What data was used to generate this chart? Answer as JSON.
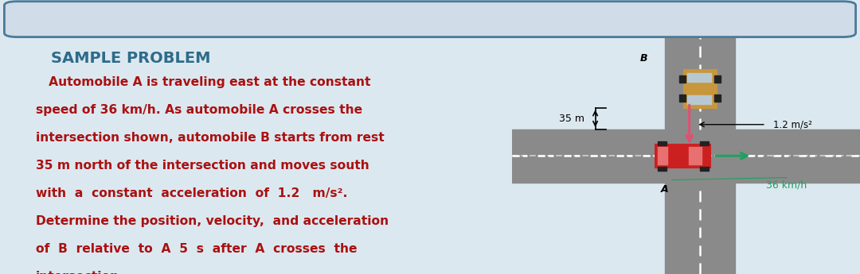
{
  "bg_color": "#dce8f0",
  "left_panel_bg": "#dce8f0",
  "right_panel_bg": "#e8e2cc",
  "title": "SAMPLE PROBLEM",
  "title_color": "#2e6b8a",
  "title_fontsize": 14,
  "body_text_color": "#aa1111",
  "body_fontsize": 11.2,
  "body_lines": [
    "   Automobile A is traveling east at the constant",
    "speed of 36 km/h. As automobile A crosses the",
    "intersection shown, automobile B starts from rest",
    "35 m north of the intersection and moves south",
    "with  a  constant  acceleration  of  1.2   m/s².",
    "Determine the position, velocity,  and acceleration",
    "of  B  relative  to  A  5  s  after  A  crosses  the",
    "intersection."
  ],
  "road_color": "#8a8a8a",
  "road_edge_color": "#6a6a6a",
  "sand_color": "#e8e2cc",
  "arrow_color_pink": "#e05070",
  "arrow_color_green": "#20a060",
  "label_35m": "35 m",
  "label_accel": "1.2 m/s²",
  "label_speed": "36 km/h",
  "label_A": "A",
  "label_B": "B",
  "car_A_body": "#cc2020",
  "car_A_window": "#e87070",
  "car_A_wheel": "#222222",
  "car_B_body": "#c8963c",
  "car_B_window": "#ddb86a",
  "car_B_wheel": "#222222",
  "border_color": "#6090b0",
  "border_top_color": "#4a7a9a"
}
